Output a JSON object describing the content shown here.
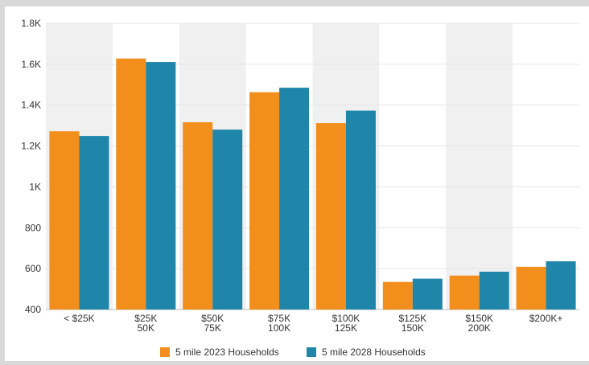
{
  "chart_data": {
    "type": "bar",
    "categories": [
      [
        "< $25K"
      ],
      [
        "$25K",
        "50K"
      ],
      [
        "$50K",
        "75K"
      ],
      [
        "$75K",
        "100K"
      ],
      [
        "$100K",
        "125K"
      ],
      [
        "$125K",
        "150K"
      ],
      [
        "$150K",
        "200K"
      ],
      [
        "$200K+"
      ]
    ],
    "series": [
      {
        "name": "5 mile 2023 Households",
        "color": "#f28e1c",
        "values": [
          1272,
          1628,
          1316,
          1463,
          1312,
          535,
          566,
          609
        ]
      },
      {
        "name": "5 mile 2028 Households",
        "color": "#1f86aa",
        "values": [
          1249,
          1611,
          1280,
          1485,
          1373,
          551,
          585,
          636
        ]
      }
    ],
    "ylim": [
      400,
      1800
    ],
    "yticks": [
      400,
      600,
      800,
      1000,
      1200,
      1400,
      1600,
      1800
    ],
    "ytick_labels": [
      "400",
      "600",
      "800",
      "1K",
      "1.2K",
      "1.4K",
      "1.6K",
      "1.8K"
    ],
    "band_color": "#f0f0f0",
    "grid": true,
    "legend_position": "bottom"
  }
}
